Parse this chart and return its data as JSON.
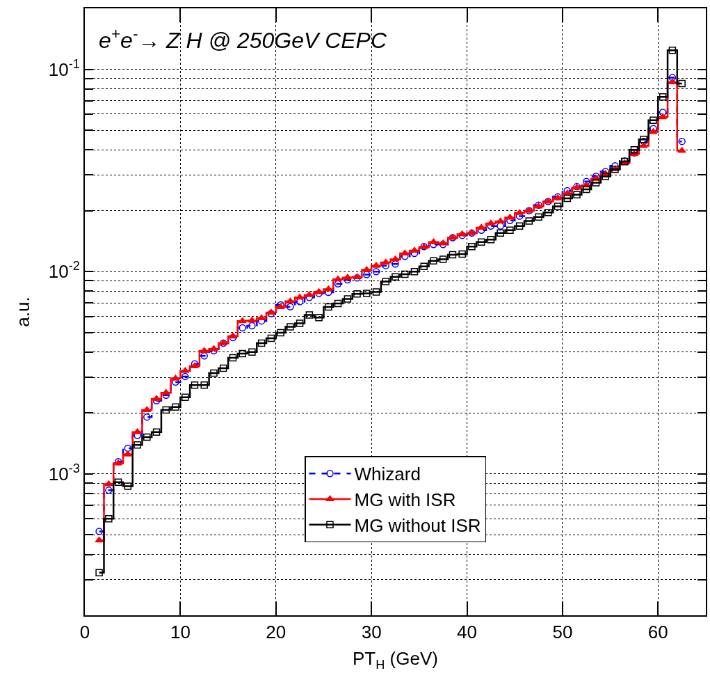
{
  "chart_data": {
    "type": "step",
    "title": "e$^{+}$e$^{-}$→ Z H @ 250GeV CEPC",
    "xlabel": "PT$_{H}$ (GeV)",
    "ylabel": "a.u.",
    "x": [
      1.5,
      2.5,
      3.5,
      4.5,
      5.5,
      6.5,
      7.5,
      8.5,
      9.5,
      10.5,
      11.5,
      12.5,
      13.5,
      14.5,
      15.5,
      16.5,
      17.5,
      18.5,
      19.5,
      20.5,
      21.5,
      22.5,
      23.5,
      24.5,
      25.5,
      26.5,
      27.5,
      28.5,
      29.5,
      30.5,
      31.5,
      32.5,
      33.5,
      34.5,
      35.5,
      36.5,
      37.5,
      38.5,
      39.5,
      40.5,
      41.5,
      42.5,
      43.5,
      44.5,
      45.5,
      46.5,
      47.5,
      48.5,
      49.5,
      50.5,
      51.5,
      52.5,
      53.5,
      54.5,
      55.5,
      56.5,
      57.5,
      58.5,
      59.5,
      60.5,
      61.5,
      62.5
    ],
    "series": [
      {
        "name": "Whizard",
        "color": "#0000ff",
        "marker": "circle",
        "line_style": "dashed",
        "values": [
          0.00052,
          0.00083,
          0.00115,
          0.00134,
          0.00155,
          0.00191,
          0.0023,
          0.00245,
          0.00284,
          0.00303,
          0.0035,
          0.00383,
          0.00406,
          0.00443,
          0.00472,
          0.00527,
          0.0054,
          0.0057,
          0.0062,
          0.00685,
          0.0067,
          0.0071,
          0.00745,
          0.0078,
          0.0079,
          0.0087,
          0.0091,
          0.0093,
          0.00966,
          0.01,
          0.0107,
          0.0109,
          0.0119,
          0.0123,
          0.0133,
          0.0136,
          0.0136,
          0.0147,
          0.0151,
          0.0155,
          0.016,
          0.0168,
          0.0168,
          0.0179,
          0.0188,
          0.02,
          0.0213,
          0.0222,
          0.0234,
          0.0251,
          0.0263,
          0.0279,
          0.0296,
          0.0312,
          0.0333,
          0.0352,
          0.0386,
          0.044,
          0.0509,
          0.0612,
          0.091,
          0.044
        ]
      },
      {
        "name": "MG with ISR",
        "color": "#ff0000",
        "marker": "triangle",
        "line_style": "solid",
        "values": [
          0.00047,
          0.00089,
          0.00113,
          0.00125,
          0.00161,
          0.00207,
          0.00235,
          0.00252,
          0.00296,
          0.00323,
          0.00341,
          0.00406,
          0.00415,
          0.00443,
          0.00479,
          0.0057,
          0.00573,
          0.00589,
          0.00627,
          0.00668,
          0.00713,
          0.00746,
          0.00766,
          0.00793,
          0.00818,
          0.00916,
          0.00935,
          0.0094,
          0.0102,
          0.0107,
          0.0111,
          0.0115,
          0.0123,
          0.0127,
          0.0132,
          0.014,
          0.0138,
          0.0147,
          0.0153,
          0.0155,
          0.0165,
          0.0173,
          0.0177,
          0.0185,
          0.0195,
          0.02,
          0.021,
          0.0222,
          0.0231,
          0.0243,
          0.026,
          0.0267,
          0.0288,
          0.0304,
          0.0321,
          0.0343,
          0.0381,
          0.0418,
          0.049,
          0.058,
          0.0863,
          0.0396
        ]
      },
      {
        "name": "MG without ISR",
        "color": "#000000",
        "marker": "square",
        "line_style": "solid",
        "values": [
          0.000325,
          0.0006,
          0.00091,
          0.00087,
          0.00139,
          0.00152,
          0.00161,
          0.00207,
          0.00214,
          0.00239,
          0.00275,
          0.00275,
          0.00315,
          0.00333,
          0.00375,
          0.00393,
          0.004,
          0.00443,
          0.00468,
          0.00499,
          0.00533,
          0.00555,
          0.0061,
          0.00593,
          0.00668,
          0.00695,
          0.00733,
          0.00776,
          0.0078,
          0.00793,
          0.00893,
          0.00941,
          0.00971,
          0.01,
          0.0106,
          0.0113,
          0.0115,
          0.0121,
          0.0122,
          0.0133,
          0.014,
          0.0144,
          0.0155,
          0.016,
          0.0168,
          0.0178,
          0.0186,
          0.0196,
          0.021,
          0.023,
          0.024,
          0.0255,
          0.0275,
          0.0295,
          0.032,
          0.035,
          0.04,
          0.045,
          0.056,
          0.073,
          0.124,
          0.085
        ]
      }
    ],
    "xlim": [
      0,
      65
    ],
    "xticks": [
      0,
      10,
      20,
      30,
      40,
      50,
      60
    ],
    "ylim": [
      0.0002,
      0.2
    ],
    "yticks": [
      {
        "value": 0.0003,
        "label": null
      },
      {
        "value": 0.0004,
        "label": null
      },
      {
        "value": 0.0005,
        "label": null
      },
      {
        "value": 0.0006,
        "label": null
      },
      {
        "value": 0.0007,
        "label": null
      },
      {
        "value": 0.0008,
        "label": null
      },
      {
        "value": 0.0009,
        "label": null
      },
      {
        "value": 0.001,
        "label": "10$^{-3}$"
      },
      {
        "value": 0.002,
        "label": null
      },
      {
        "value": 0.003,
        "label": null
      },
      {
        "value": 0.004,
        "label": null
      },
      {
        "value": 0.005,
        "label": null
      },
      {
        "value": 0.006,
        "label": null
      },
      {
        "value": 0.007,
        "label": null
      },
      {
        "value": 0.008,
        "label": null
      },
      {
        "value": 0.009,
        "label": null
      },
      {
        "value": 0.01,
        "label": "10$^{-2}$"
      },
      {
        "value": 0.02,
        "label": null
      },
      {
        "value": 0.03,
        "label": null
      },
      {
        "value": 0.04,
        "label": null
      },
      {
        "value": 0.05,
        "label": null
      },
      {
        "value": 0.06,
        "label": null
      },
      {
        "value": 0.07,
        "label": null
      },
      {
        "value": 0.08,
        "label": null
      },
      {
        "value": 0.09,
        "label": null
      },
      {
        "value": 0.1,
        "label": "10$^{-1}$"
      }
    ],
    "log": "y",
    "grid": true,
    "legend": "bottom"
  }
}
